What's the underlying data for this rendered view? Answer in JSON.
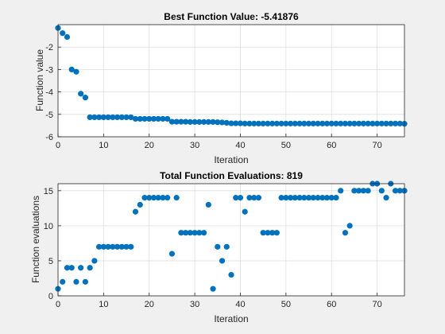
{
  "chart_data": [
    {
      "type": "scatter",
      "title": "Best Function Value: -5.41876",
      "xlabel": "Iteration",
      "ylabel": "Function value",
      "xlim": [
        0,
        76
      ],
      "ylim": [
        -6,
        -1
      ],
      "xticks": [
        0,
        10,
        20,
        30,
        40,
        50,
        60,
        70
      ],
      "yticks": [
        -6,
        -5,
        -4,
        -3,
        -2
      ],
      "grid": true,
      "marker_color": "#0072BD",
      "x": [
        0,
        1,
        2,
        3,
        4,
        5,
        6,
        7,
        8,
        9,
        10,
        11,
        12,
        13,
        14,
        15,
        16,
        17,
        18,
        19,
        20,
        21,
        22,
        23,
        24,
        25,
        26,
        27,
        28,
        29,
        30,
        31,
        32,
        33,
        34,
        35,
        36,
        37,
        38,
        39,
        40,
        41,
        42,
        43,
        44,
        45,
        46,
        47,
        48,
        49,
        50,
        51,
        52,
        53,
        54,
        55,
        56,
        57,
        58,
        59,
        60,
        61,
        62,
        63,
        64,
        65,
        66,
        67,
        68,
        69,
        70,
        71,
        72,
        73,
        74,
        75,
        76
      ],
      "y": [
        -1.15,
        -1.38,
        -1.55,
        -3.0,
        -3.1,
        -4.08,
        -4.25,
        -5.13,
        -5.13,
        -5.13,
        -5.13,
        -5.13,
        -5.13,
        -5.13,
        -5.13,
        -5.13,
        -5.13,
        -5.2,
        -5.2,
        -5.2,
        -5.2,
        -5.2,
        -5.2,
        -5.2,
        -5.2,
        -5.33,
        -5.33,
        -5.33,
        -5.33,
        -5.34,
        -5.34,
        -5.34,
        -5.34,
        -5.34,
        -5.34,
        -5.35,
        -5.36,
        -5.38,
        -5.4,
        -5.4,
        -5.4,
        -5.41,
        -5.41,
        -5.41,
        -5.41,
        -5.41,
        -5.41,
        -5.41,
        -5.41,
        -5.41,
        -5.41,
        -5.41,
        -5.41,
        -5.41,
        -5.41,
        -5.41,
        -5.41,
        -5.41,
        -5.41,
        -5.41,
        -5.41,
        -5.41,
        -5.41,
        -5.41,
        -5.41,
        -5.41,
        -5.41,
        -5.41,
        -5.41,
        -5.41,
        -5.41,
        -5.41,
        -5.41,
        -5.41,
        -5.41,
        -5.41,
        -5.42
      ]
    },
    {
      "type": "scatter",
      "title": "Total Function Evaluations: 819",
      "xlabel": "Iteration",
      "ylabel": "Function evaluations",
      "xlim": [
        0,
        76
      ],
      "ylim": [
        0,
        16
      ],
      "xticks": [
        0,
        10,
        20,
        30,
        40,
        50,
        60,
        70
      ],
      "yticks": [
        0,
        5,
        10,
        15
      ],
      "grid": true,
      "marker_color": "#0072BD",
      "x": [
        0,
        1,
        2,
        3,
        4,
        5,
        6,
        7,
        8,
        9,
        10,
        11,
        12,
        13,
        14,
        15,
        16,
        17,
        18,
        19,
        20,
        21,
        22,
        23,
        24,
        25,
        26,
        27,
        28,
        29,
        30,
        31,
        32,
        33,
        34,
        35,
        36,
        37,
        38,
        39,
        40,
        41,
        42,
        43,
        44,
        45,
        46,
        47,
        48,
        49,
        50,
        51,
        52,
        53,
        54,
        55,
        56,
        57,
        58,
        59,
        60,
        61,
        62,
        63,
        64,
        65,
        66,
        67,
        68,
        69,
        70,
        71,
        72,
        73,
        74,
        75,
        76
      ],
      "y": [
        1,
        2,
        4,
        4,
        2,
        4,
        2,
        4,
        5,
        7,
        7,
        7,
        7,
        7,
        7,
        7,
        7,
        12,
        13,
        14,
        14,
        14,
        14,
        14,
        14,
        6,
        14,
        9,
        9,
        9,
        9,
        9,
        9,
        13,
        1,
        7,
        5,
        7,
        3,
        14,
        14,
        12,
        14,
        14,
        14,
        9,
        9,
        9,
        9,
        14,
        14,
        14,
        14,
        14,
        14,
        14,
        14,
        14,
        14,
        14,
        14,
        14,
        15,
        9,
        10,
        15,
        15,
        15,
        15,
        16,
        16,
        15,
        14,
        16,
        15,
        15,
        15
      ]
    }
  ]
}
